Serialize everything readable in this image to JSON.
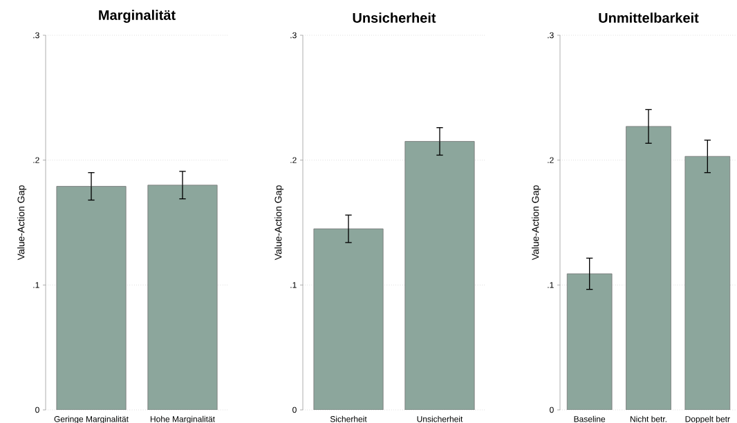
{
  "chart_data": [
    {
      "type": "bar",
      "title": "Marginalität",
      "ylabel": "Value-Action Gap",
      "categories": [
        "Geringe Marginalität",
        "Hohe Marginalität"
      ],
      "values": [
        0.179,
        0.18
      ],
      "errors": [
        0.011,
        0.011
      ],
      "color": "#8ca69c",
      "ylim": [
        0,
        0.3
      ],
      "yticks": [
        0,
        {
          "value": 0.1,
          "label": ".1"
        },
        {
          "value": 0.2,
          "label": ".2"
        },
        {
          "value": 0.3,
          "label": ".3"
        }
      ],
      "grid": "y"
    },
    {
      "type": "bar",
      "title": "Unsicherheit",
      "ylabel": "Value-Action Gap",
      "categories": [
        "Sicherheit",
        "Unsicherheit"
      ],
      "values": [
        0.145,
        0.215
      ],
      "errors": [
        0.011,
        0.011
      ],
      "color": "#8ca69c",
      "ylim": [
        0,
        0.3
      ],
      "yticks": [
        0,
        {
          "value": 0.1,
          "label": ".1"
        },
        {
          "value": 0.2,
          "label": ".2"
        },
        {
          "value": 0.3,
          "label": ".3"
        }
      ],
      "grid": "y"
    },
    {
      "type": "bar",
      "title": "Unmittelbarkeit",
      "ylabel": "Value-Action Gap",
      "categories": [
        "Baseline",
        "Nicht betr.",
        "Doppelt betr"
      ],
      "values": [
        0.109,
        0.227,
        0.203
      ],
      "errors": [
        0.0125,
        0.0135,
        0.013
      ],
      "color": "#8ca69c",
      "ylim": [
        0,
        0.3
      ],
      "yticks": [
        0,
        {
          "value": 0.1,
          "label": ".1"
        },
        {
          "value": 0.2,
          "label": ".2"
        },
        {
          "value": 0.3,
          "label": ".3"
        }
      ],
      "grid": "y"
    }
  ]
}
